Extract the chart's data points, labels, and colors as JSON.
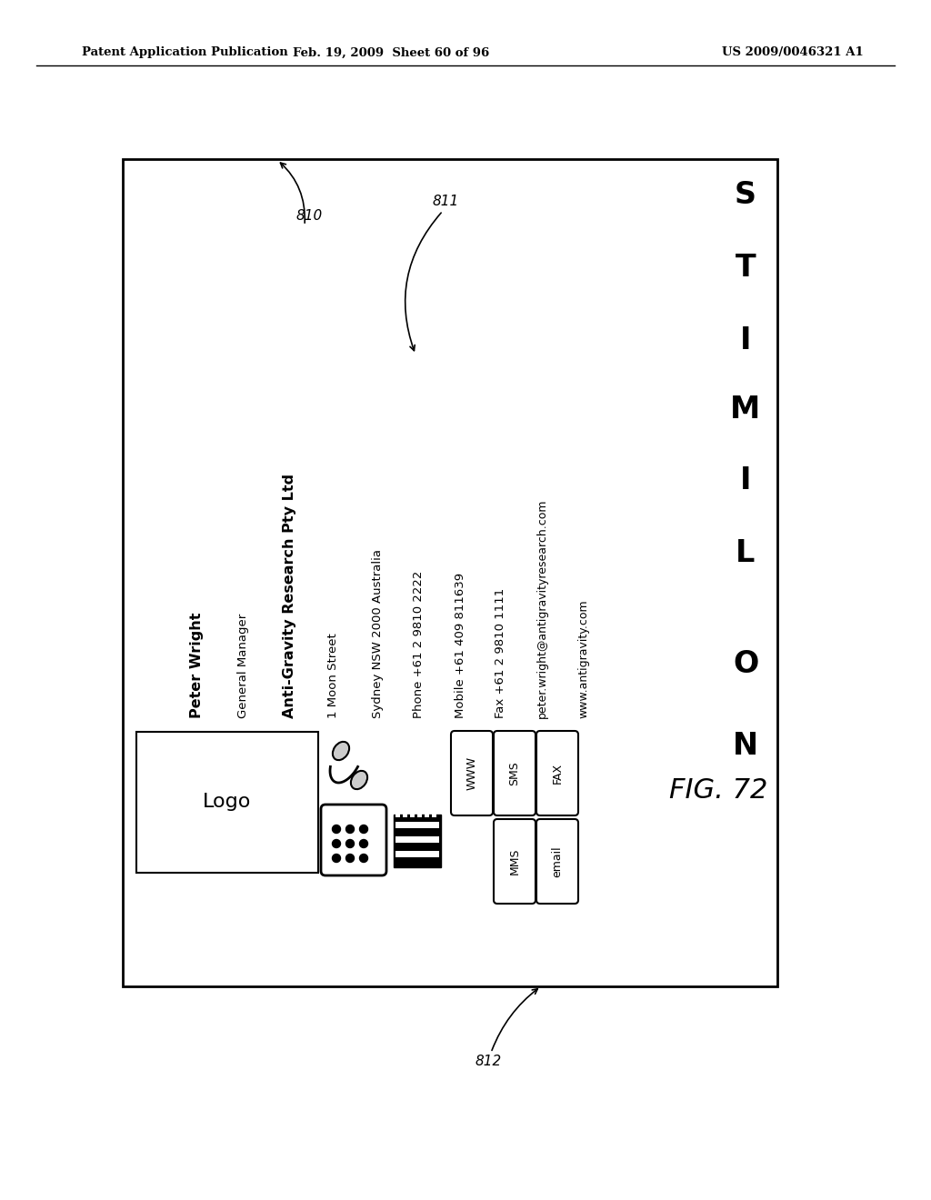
{
  "bg_color": "#ffffff",
  "header_left": "Patent Application Publication",
  "header_mid": "Feb. 19, 2009  Sheet 60 of 96",
  "header_right": "US 2009/0046321 A1",
  "fig_label": "FIG. 72",
  "contact_info": [
    {
      "text": "Peter Wright",
      "bold": true
    },
    {
      "text": "General Manager",
      "bold": false
    },
    {
      "text": "Anti-Gravity Research Pty Ltd",
      "bold": true
    },
    {
      "text": "1 Moon Street",
      "bold": false
    },
    {
      "text": "Sydney NSW 2000 Australia",
      "bold": false
    },
    {
      "text": "Phone +61 2 9810 2222",
      "bold": false
    },
    {
      "text": "Mobile +61 409 811639",
      "bold": false
    },
    {
      "text": "Fax +61 2 9810 1111",
      "bold": false
    },
    {
      "text": "peter.wright@antigravityresearch.com",
      "bold": false
    },
    {
      "text": "www.antigravity.com",
      "bold": false
    }
  ],
  "limits_letters": [
    "S",
    "T",
    "I",
    "M",
    "I",
    "L"
  ],
  "no_letters": [
    "O",
    "N"
  ],
  "buttons_top": [
    "WWW",
    "SMS",
    "FAX"
  ],
  "buttons_bottom": [
    "MMS",
    "email"
  ]
}
